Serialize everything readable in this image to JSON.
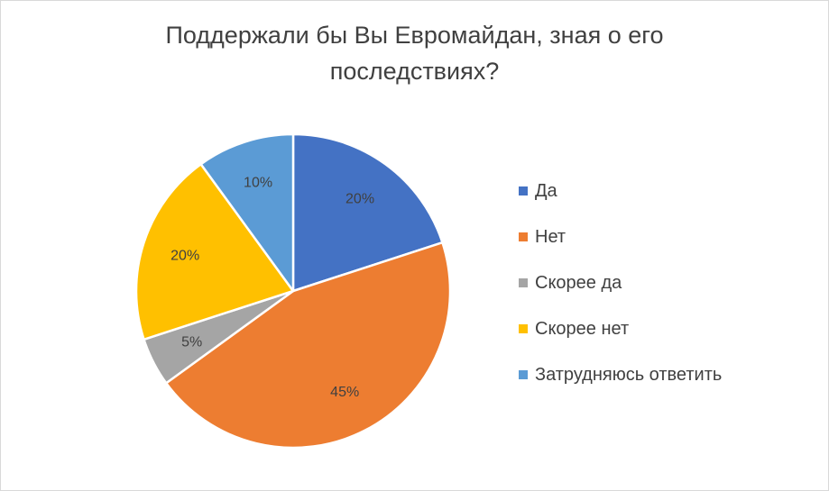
{
  "chart_data": {
    "type": "pie",
    "title_lines": [
      "Поддержали бы Вы Евромайдан, зная о его",
      "последствиях?"
    ],
    "categories": [
      "Да",
      "Нет",
      "Скорее да",
      "Скорее нет",
      "Затрудняюсь ответить"
    ],
    "values": [
      20,
      45,
      5,
      20,
      10
    ],
    "data_labels": [
      "20%",
      "45%",
      "5%",
      "20%",
      "10%"
    ],
    "colors": [
      "#4472C4",
      "#ED7D31",
      "#A5A5A5",
      "#FFC000",
      "#5B9BD5"
    ],
    "legend_position": "right"
  }
}
